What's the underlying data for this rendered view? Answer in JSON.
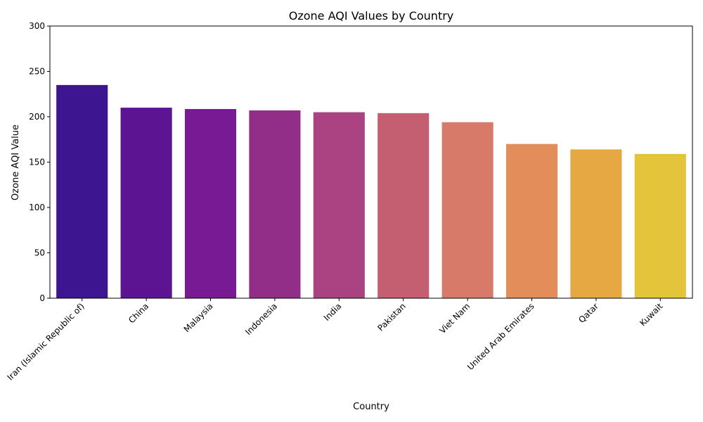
{
  "chart_data": {
    "type": "bar",
    "title": "Ozone AQI Values by Country",
    "xlabel": "Country",
    "ylabel": "Ozone AQI Value",
    "ylim": [
      0,
      300
    ],
    "yticks": [
      0,
      50,
      100,
      150,
      200,
      250,
      300
    ],
    "categories": [
      "Iran (Islamic Republic of)",
      "China",
      "Malaysia",
      "Indonesia",
      "India",
      "Pakistan",
      "Viet Nam",
      "United Arab Emirates",
      "Qatar",
      "Kuwait"
    ],
    "values": [
      235,
      210,
      208.5,
      207,
      205,
      204,
      194,
      170,
      164,
      159
    ],
    "colors": [
      "#3e1591",
      "#5d1492",
      "#771a93",
      "#922e88",
      "#ab4281",
      "#c45f71",
      "#d77a6a",
      "#e28d5a",
      "#e6a843",
      "#e3c43a"
    ],
    "grid": false,
    "legend": "none"
  }
}
